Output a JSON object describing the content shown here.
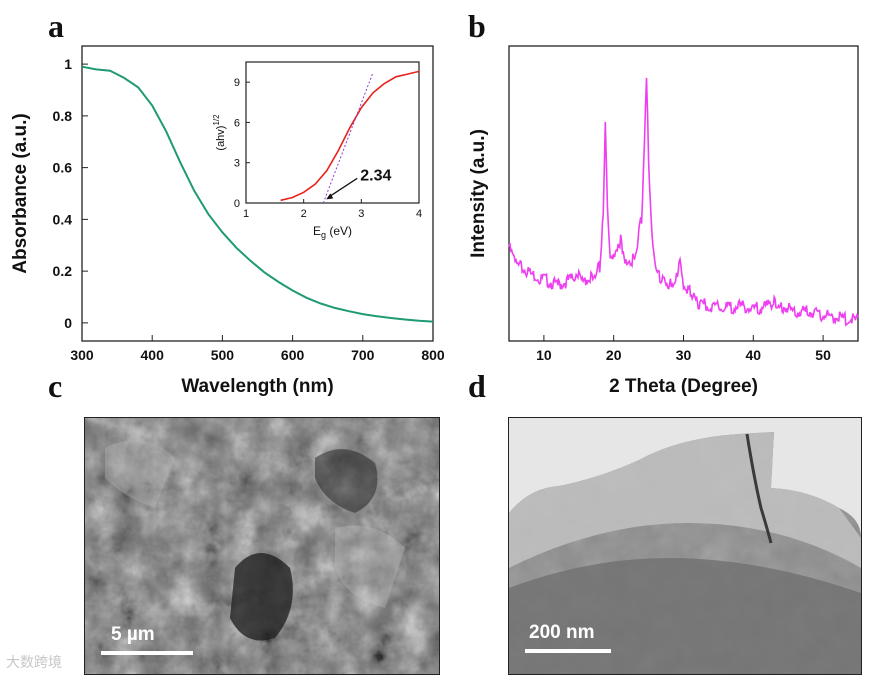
{
  "panels": {
    "a": {
      "letter": "a",
      "chart_data": {
        "type": "line",
        "xlabel": "Wavelength (nm)",
        "ylabel": "Absorbance (a.u.)",
        "xlim": [
          300,
          800
        ],
        "ylim": [
          -0.07,
          1.07
        ],
        "xticks": [
          300,
          400,
          500,
          600,
          700,
          800
        ],
        "yticks": [
          0,
          0.2,
          0.4,
          0.6,
          0.8,
          1
        ],
        "series": [
          {
            "color": "#1e9a74",
            "x": [
              300,
              320,
              340,
              360,
              380,
              400,
              420,
              440,
              460,
              480,
              500,
              520,
              540,
              560,
              580,
              600,
              620,
              640,
              660,
              680,
              700,
              720,
              740,
              760,
              780,
              800
            ],
            "y": [
              0.99,
              0.985,
              0.975,
              0.95,
              0.91,
              0.84,
              0.74,
              0.62,
              0.51,
              0.42,
              0.35,
              0.29,
              0.24,
              0.195,
              0.158,
              0.125,
              0.097,
              0.075,
              0.058,
              0.045,
              0.034,
              0.026,
              0.019,
              0.013,
              0.008,
              0.005
            ]
          }
        ],
        "inset": {
          "type": "line",
          "xlabel": "Eg (eV)",
          "ylabel": "(ahv)1/2",
          "xlim": [
            1,
            4
          ],
          "ylim": [
            0,
            10.5
          ],
          "xticks": [
            1,
            2,
            3,
            4
          ],
          "yticks": [
            0,
            3,
            6,
            9
          ],
          "annotation": "2.34",
          "series": [
            {
              "color": "#e8221b",
              "x": [
                1.6,
                1.8,
                2.0,
                2.2,
                2.4,
                2.6,
                2.8,
                3.0,
                3.2,
                3.4,
                3.6,
                3.8,
                4.0
              ],
              "y": [
                0.2,
                0.4,
                0.8,
                1.4,
                2.4,
                3.9,
                5.6,
                7.1,
                8.2,
                8.9,
                9.4,
                9.6,
                9.8
              ]
            },
            {
              "color": "#8a3bd6",
              "style": "dashed",
              "x": [
                2.34,
                3.2
              ],
              "y": [
                0,
                9.7
              ]
            }
          ]
        }
      }
    },
    "b": {
      "letter": "b",
      "chart_data": {
        "type": "line",
        "xlabel": "2 Theta (Degree)",
        "ylabel": "Intensity (a.u.)",
        "xlim": [
          5,
          55
        ],
        "ylim": [
          0,
          100
        ],
        "xticks": [
          10,
          20,
          30,
          40,
          50
        ],
        "series": [
          {
            "color": "#ee3ff0",
            "x": [
              5,
              6,
              8,
              10,
              12,
              14,
              15,
              16,
              17,
              18,
              18.5,
              18.8,
              19.1,
              19.5,
              20,
              20.5,
              21,
              21.5,
              22,
              23,
              24,
              24.4,
              24.7,
              25,
              25.5,
              26,
              27,
              28,
              29,
              29.5,
              30,
              31,
              32,
              34,
              36,
              38,
              40,
              42,
              43,
              44,
              46,
              48,
              50,
              52,
              55
            ],
            "y": [
              33,
              27,
              24,
              22,
              20,
              22,
              25,
              22,
              23,
              26,
              45,
              76,
              45,
              28,
              29,
              31,
              35,
              30,
              28,
              29,
              43,
              70,
              92,
              60,
              35,
              25,
              22,
              20,
              23,
              31,
              20,
              18,
              14,
              13,
              12,
              13,
              12,
              13,
              15,
              13,
              11,
              11,
              10,
              9,
              8
            ]
          }
        ]
      }
    },
    "c": {
      "letter": "c",
      "scalebar": "5 µm"
    },
    "d": {
      "letter": "d",
      "scalebar": "200 nm"
    }
  },
  "watermark": "大数跨境"
}
